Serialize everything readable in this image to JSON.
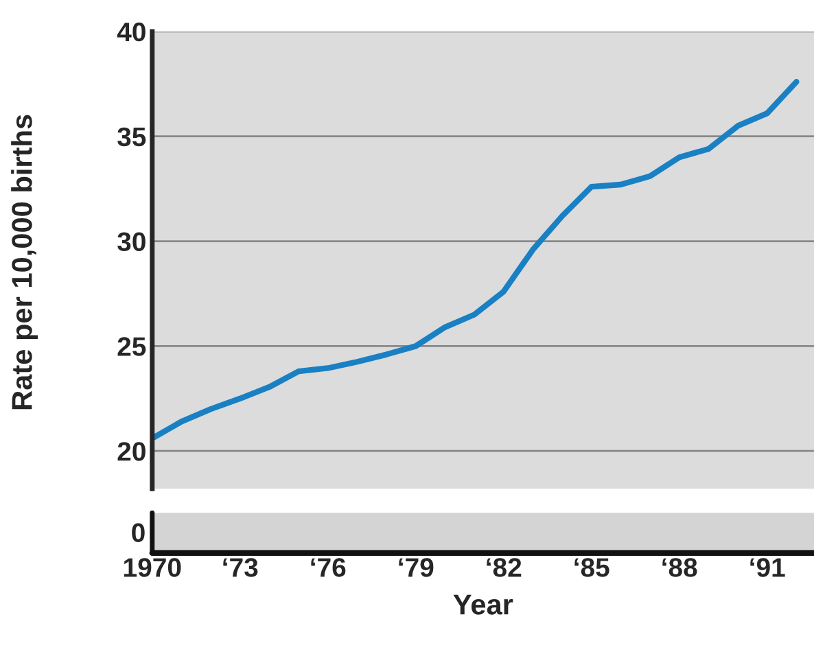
{
  "chart_data": {
    "type": "line",
    "xlabel": "Year",
    "ylabel": "Rate per 10,000 births",
    "categories": [
      "1970",
      null,
      null,
      "‘73",
      null,
      null,
      "‘76",
      null,
      null,
      "‘79",
      null,
      null,
      "‘82",
      null,
      null,
      "‘85",
      null,
      null,
      "‘88",
      null,
      null,
      "‘91",
      null
    ],
    "series": [
      {
        "color": "#1a80c4",
        "values": [
          20.6,
          21.4,
          22.0,
          22.5,
          23.05,
          23.8,
          23.95,
          24.25,
          24.6,
          25.0,
          25.9,
          26.5,
          27.6,
          29.6,
          31.2,
          32.6,
          32.7,
          33.1,
          34.0,
          34.4,
          35.5,
          36.1,
          37.6
        ]
      }
    ],
    "ylim": [
      18.2,
      40
    ],
    "yticks": [
      20,
      25,
      30,
      35,
      40
    ],
    "grid": "y",
    "marker": "none",
    "line_style": "solid",
    "annotations": [
      "0"
    ]
  }
}
